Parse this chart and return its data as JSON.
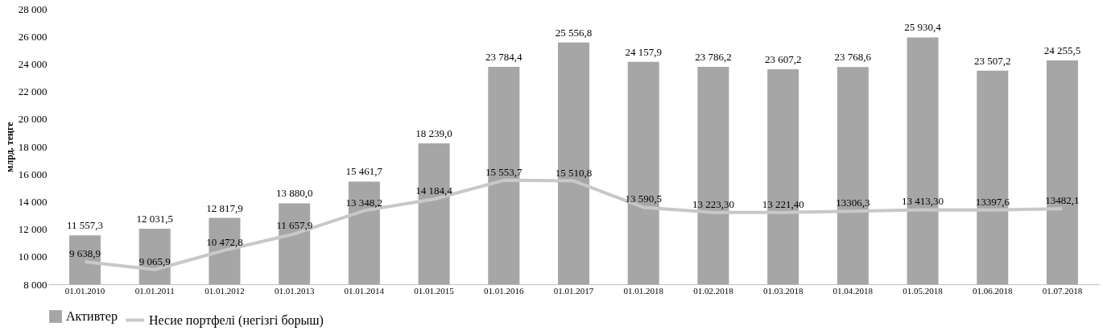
{
  "chart_data": {
    "type": "bar",
    "ylabel": "млрд. теңге",
    "categories": [
      "01.01.2010",
      "01.01.2011",
      "01.01.2012",
      "01.01.2013",
      "01.01.2014",
      "01.01.2015",
      "01.01.2016",
      "01.01.2017",
      "01.01.2018",
      "01.02.2018",
      "01.03.2018",
      "01.04.2018",
      "01.05.2018",
      "01.06.2018",
      "01.07.2018"
    ],
    "series": [
      {
        "name": "Активтер",
        "color": "#a6a6a6",
        "values": [
          11557.3,
          12031.5,
          12817.9,
          13880.0,
          15461.7,
          18239.0,
          23784.4,
          25556.8,
          24157.9,
          23786.2,
          23607.2,
          23768.6,
          25930.4,
          23507.2,
          24255.5
        ],
        "value_labels": [
          "11 557,3",
          "12 031,5",
          "12 817,9",
          "13 880,0",
          "15 461,7",
          "18 239,0",
          "23 784,4",
          "25 556,8",
          "24 157,9",
          "23 786,2",
          "23 607,2",
          "23 768,6",
          "25 930,4",
          "23 507,2",
          "24 255,5"
        ]
      },
      {
        "name": "Несие портфелі (негізгі борыш)",
        "type": "line",
        "color": "#c8c8c8",
        "values": [
          9638.9,
          9065.9,
          10472.8,
          11657.9,
          13348.2,
          14184.4,
          15553.7,
          15510.8,
          13590.5,
          13223.3,
          13221.4,
          13306.3,
          13413.3,
          13397.6,
          13482.1
        ],
        "value_labels": [
          "9 638,9",
          "9 065,9",
          "10 472,8",
          "11 657,9",
          "13 348,2",
          "14 184,4",
          "15 553,7",
          "15 510,8",
          "13 590,5",
          "13 223,30",
          "13 221,40",
          "13306,3",
          "13 413,30",
          "13397,6",
          "13482,1"
        ]
      }
    ],
    "ylim": [
      8000,
      28000
    ],
    "yticks": [
      {
        "value": 8000,
        "label": "8 000"
      },
      {
        "value": 10000,
        "label": "10 000"
      },
      {
        "value": 12000,
        "label": "12 000"
      },
      {
        "value": 14000,
        "label": "14 000"
      },
      {
        "value": 16000,
        "label": "16 000"
      },
      {
        "value": 18000,
        "label": "18 000"
      },
      {
        "value": 20000,
        "label": "20 000"
      },
      {
        "value": 22000,
        "label": "22 000"
      },
      {
        "value": 24000,
        "label": "24 000"
      },
      {
        "value": 26000,
        "label": "26 000"
      },
      {
        "value": 28000,
        "label": "28 000"
      }
    ],
    "grid": false,
    "legend": "bottom"
  }
}
